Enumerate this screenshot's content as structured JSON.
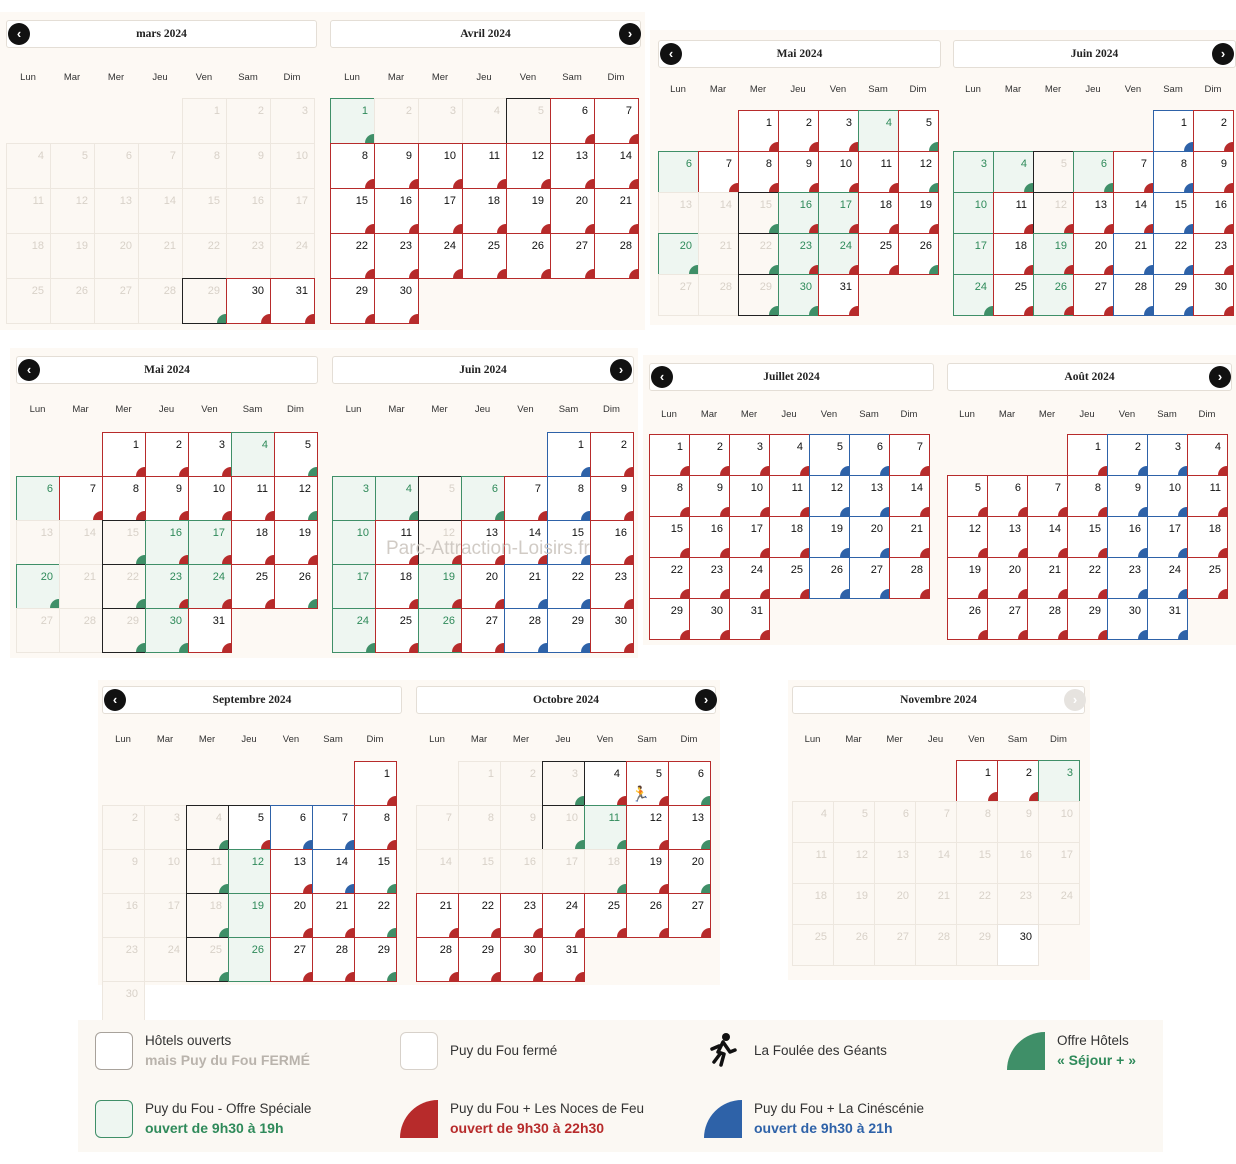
{
  "dow": [
    "Lun",
    "Mar",
    "Mer",
    "Jeu",
    "Ven",
    "Sam",
    "Dim"
  ],
  "colors": {
    "red": "#b72b2b",
    "blue": "#2e62a8",
    "green": "#3f8f68",
    "hotel": "#222222"
  },
  "watermark": "Parc-Attraction-Loisirs.fr",
  "months": {
    "mars": {
      "title": "mars 2024",
      "start": 4,
      "days": 31,
      "cells": {
        "1": "p",
        "2": "p",
        "3": "p",
        "4": "p",
        "5": "p",
        "6": "p",
        "7": "p",
        "8": "p",
        "9": "p",
        "10": "p",
        "11": "p",
        "12": "p",
        "13": "p",
        "14": "p",
        "15": "p",
        "16": "p",
        "17": "p",
        "18": "p",
        "19": "p",
        "20": "p",
        "21": "p",
        "22": "p",
        "23": "p",
        "24": "p",
        "25": "p",
        "26": "p",
        "27": "p",
        "28": "p",
        "29": "hpg",
        "30": "r",
        "31": "r"
      }
    },
    "avril": {
      "title": "Avril 2024",
      "start": 0,
      "days": 30,
      "cells": {
        "1": "gg",
        "2": "p",
        "3": "p",
        "4": "p",
        "5": "hp",
        "6": "r",
        "7": "r",
        "8": "r",
        "9": "r",
        "10": "r",
        "11": "r",
        "12": "r",
        "13": "r",
        "14": "r",
        "15": "r",
        "16": "r",
        "17": "r",
        "18": "r",
        "19": "r",
        "20": "r",
        "21": "r",
        "22": "r",
        "23": "r",
        "24": "r",
        "25": "r",
        "26": "r",
        "27": "r",
        "28": "r",
        "29": "r",
        "30": "r"
      }
    },
    "mai": {
      "title": "Mai 2024",
      "start": 2,
      "days": 31,
      "cells": {
        "1": "r",
        "2": "r",
        "3": "r",
        "4": "g",
        "5": "rg",
        "6": "g",
        "7": "r",
        "8": "r",
        "9": "r",
        "10": "r",
        "11": "r",
        "12": "rg",
        "13": "p",
        "14": "p",
        "15": "hpg",
        "16": "gr",
        "17": "gr",
        "18": "r",
        "19": "r",
        "20": "gg",
        "21": "p",
        "22": "hpg",
        "23": "gr",
        "24": "gr",
        "25": "r",
        "26": "rg",
        "27": "p",
        "28": "p",
        "29": "hpg",
        "30": "gg",
        "31": "r"
      }
    },
    "juin": {
      "title": "Juin 2024",
      "start": 5,
      "days": 30,
      "cells": {
        "1": "b",
        "2": "r",
        "3": "g",
        "4": "gg",
        "5": "hp",
        "6": "gg",
        "7": "r",
        "8": "b",
        "9": "r",
        "10": "g",
        "11": "r",
        "12": "hpr",
        "13": "r",
        "14": "r",
        "15": "b",
        "16": "r",
        "17": "g",
        "18": "r",
        "19": "gr",
        "20": "r",
        "21": "b",
        "22": "b",
        "23": "r",
        "24": "gg",
        "25": "r",
        "26": "gr",
        "27": "r",
        "28": "b",
        "29": "b",
        "30": "r"
      }
    },
    "juillet": {
      "title": "Juillet 2024",
      "start": 0,
      "days": 31,
      "cells": {
        "1": "r",
        "2": "r",
        "3": "r",
        "4": "r",
        "5": "b",
        "6": "b",
        "7": "r",
        "8": "r",
        "9": "r",
        "10": "r",
        "11": "r",
        "12": "b",
        "13": "b",
        "14": "r",
        "15": "r",
        "16": "r",
        "17": "r",
        "18": "r",
        "19": "b",
        "20": "b",
        "21": "r",
        "22": "r",
        "23": "r",
        "24": "r",
        "25": "r",
        "26": "b",
        "27": "b",
        "28": "r",
        "29": "r",
        "30": "r",
        "31": "r"
      }
    },
    "aout": {
      "title": "Août 2024",
      "start": 3,
      "days": 31,
      "cells": {
        "1": "r",
        "2": "b",
        "3": "b",
        "4": "r",
        "5": "r",
        "6": "r",
        "7": "r",
        "8": "r",
        "9": "b",
        "10": "b",
        "11": "r",
        "12": "r",
        "13": "r",
        "14": "r",
        "15": "r",
        "16": "b",
        "17": "b",
        "18": "r",
        "19": "r",
        "20": "r",
        "21": "r",
        "22": "r",
        "23": "b",
        "24": "b",
        "25": "r",
        "26": "r",
        "27": "r",
        "28": "r",
        "29": "r",
        "30": "b",
        "31": "b"
      }
    },
    "septembre": {
      "title": "Septembre 2024",
      "start": 6,
      "days": 30,
      "cells": {
        "1": "r",
        "2": "p",
        "3": "p",
        "4": "hpg",
        "5": "hr",
        "6": "b",
        "7": "b",
        "8": "r",
        "9": "p",
        "10": "p",
        "11": "hpg",
        "12": "g",
        "13": "r",
        "14": "b",
        "15": "rg",
        "16": "p",
        "17": "p",
        "18": "hpg",
        "19": "g",
        "20": "r",
        "21": "r",
        "22": "rg",
        "23": "p",
        "24": "p",
        "25": "hpg",
        "26": "g",
        "27": "r",
        "28": "r",
        "29": "rg",
        "30": "p"
      }
    },
    "octobre": {
      "title": "Octobre 2024",
      "start": 1,
      "days": 31,
      "cells": {
        "1": "p",
        "2": "p",
        "3": "hpg",
        "4": "hr",
        "5": "rw",
        "6": "rg",
        "7": "p",
        "8": "p",
        "9": "p",
        "10": "hpg",
        "11": "gg",
        "12": "r",
        "13": "rg",
        "14": "p",
        "15": "p",
        "16": "p",
        "17": "p",
        "18": "pg",
        "19": "r",
        "20": "rg",
        "21": "r",
        "22": "r",
        "23": "r",
        "24": "r",
        "25": "r",
        "26": "r",
        "27": "r",
        "28": "r",
        "29": "r",
        "30": "r",
        "31": "r"
      }
    },
    "novembre": {
      "title": "Novembre 2024",
      "start": 4,
      "days": 30,
      "cells": {
        "1": "r",
        "2": "r",
        "3": "g",
        "4": "p",
        "5": "p",
        "6": "p",
        "7": "p",
        "8": "p",
        "9": "p",
        "10": "p",
        "11": "p",
        "12": "p",
        "13": "p",
        "14": "p",
        "15": "p",
        "16": "p",
        "17": "p",
        "18": "p",
        "19": "p",
        "20": "p",
        "21": "p",
        "22": "p",
        "23": "p",
        "24": "p",
        "25": "p",
        "26": "p",
        "27": "p",
        "28": "p",
        "29": "p",
        "30": "c"
      }
    }
  },
  "legend": {
    "hotels_line1": "Hôtels ouverts",
    "hotels_line2": "mais Puy du Fou FERMÉ",
    "closed": "Puy du Fou fermé",
    "foulee": "La Foulée des Géants",
    "offre_line1": "Offre Hôtels",
    "offre_line2": "« Séjour + »",
    "special_line1": "Puy du Fou - Offre Spéciale",
    "special_line2": "ouvert de 9h30 à 19h",
    "noces_line1": "Puy du Fou + Les Noces de Feu",
    "noces_line2": "ouvert de 9h30 à 22h30",
    "cine_line1": "Puy du Fou + La Cinéscénie",
    "cine_line2": "ouvert de 9h30 à 21h",
    "text_colors": {
      "gray": "#b9b3ac",
      "green": "#2f8a5a",
      "red": "#b72b2b",
      "blue": "#2e62a8"
    }
  }
}
